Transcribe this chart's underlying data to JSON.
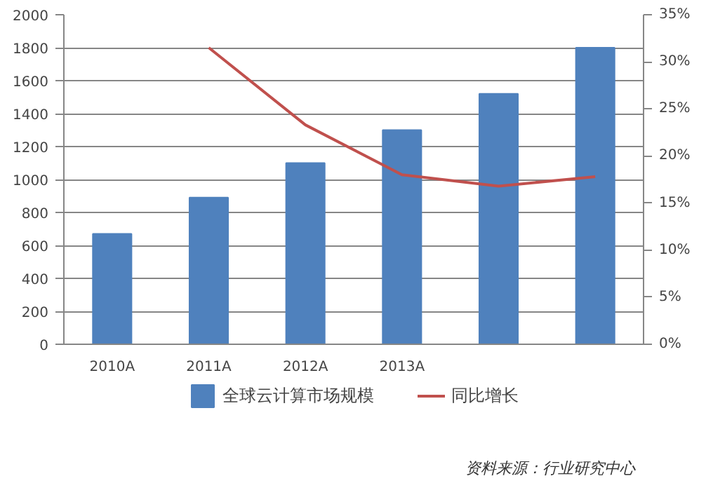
{
  "chart_data": {
    "type": "bar",
    "categories": [
      "2010A",
      "2011A",
      "2012A",
      "2013A",
      null,
      null
    ],
    "series": [
      {
        "name": "全球云计算市场规模",
        "color": "#4f81bd",
        "values": [
          670,
          890,
          1100,
          1300,
          1520,
          1800
        ]
      },
      {
        "name": "同比增长",
        "type": "line",
        "axis": "y2",
        "color": "#c0504d",
        "values": [
          null,
          31.5,
          23.3,
          18.0,
          16.8,
          17.8
        ]
      }
    ],
    "ylim": [
      0,
      2000
    ],
    "yticks": [
      0,
      200,
      400,
      600,
      800,
      1000,
      1200,
      1400,
      1600,
      1800,
      2000
    ],
    "y2lim": [
      0,
      35
    ],
    "y2ticks": [
      {
        "value": 0,
        "label": "0%"
      },
      {
        "value": 5,
        "label": "5%"
      },
      {
        "value": 10,
        "label": "10%"
      },
      {
        "value": 15,
        "label": "15%"
      },
      {
        "value": 20,
        "label": "20%"
      },
      {
        "value": 25,
        "label": "25%"
      },
      {
        "value": 30,
        "label": "30%"
      },
      {
        "value": 35,
        "label": "35%"
      }
    ],
    "grid": "y",
    "legend": "bottom",
    "annotations": [
      "资料来源：行业研究中心"
    ]
  }
}
